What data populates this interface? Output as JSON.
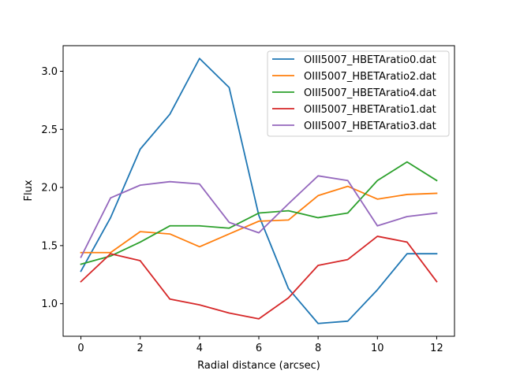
{
  "chart_data": {
    "type": "line",
    "title": "",
    "xlabel": "Radial distance (arcsec)",
    "ylabel": "Flux",
    "xlim": [
      -0.6,
      12.6
    ],
    "ylim": [
      0.72,
      3.22
    ],
    "xticks": [
      0,
      2,
      4,
      6,
      8,
      10,
      12
    ],
    "yticks": [
      1.0,
      1.5,
      2.0,
      2.5,
      3.0
    ],
    "ytick_labels": [
      "1.0",
      "1.5",
      "2.0",
      "2.5",
      "3.0"
    ],
    "grid": false,
    "legend_position": "top-right",
    "x": [
      0,
      1,
      2,
      3,
      4,
      5,
      6,
      7,
      8,
      9,
      10,
      11,
      12
    ],
    "series": [
      {
        "name": "OIII5007_HBETAratio0.dat",
        "color": "#1f77b4",
        "values": [
          1.28,
          1.74,
          2.33,
          2.63,
          3.11,
          2.86,
          1.76,
          1.13,
          0.83,
          0.85,
          1.12,
          1.43,
          1.43
        ]
      },
      {
        "name": "OIII5007_HBETAratio2.dat",
        "color": "#ff7f0e",
        "values": [
          1.44,
          1.44,
          1.62,
          1.6,
          1.49,
          1.6,
          1.71,
          1.72,
          1.93,
          2.01,
          1.9,
          1.94,
          1.95
        ]
      },
      {
        "name": "OIII5007_HBETAratio4.dat",
        "color": "#2ca02c",
        "values": [
          1.34,
          1.41,
          1.53,
          1.67,
          1.67,
          1.65,
          1.78,
          1.8,
          1.74,
          1.78,
          2.06,
          2.22,
          2.06
        ]
      },
      {
        "name": "OIII5007_HBETAratio1.dat",
        "color": "#d62728",
        "values": [
          1.19,
          1.43,
          1.37,
          1.04,
          0.99,
          0.92,
          0.87,
          1.05,
          1.33,
          1.38,
          1.58,
          1.53,
          1.19
        ]
      },
      {
        "name": "OIII5007_HBETAratio3.dat",
        "color": "#9467bd",
        "values": [
          1.4,
          1.91,
          2.02,
          2.05,
          2.03,
          1.7,
          1.61,
          1.86,
          2.1,
          2.06,
          1.67,
          1.75,
          1.78
        ]
      }
    ]
  }
}
